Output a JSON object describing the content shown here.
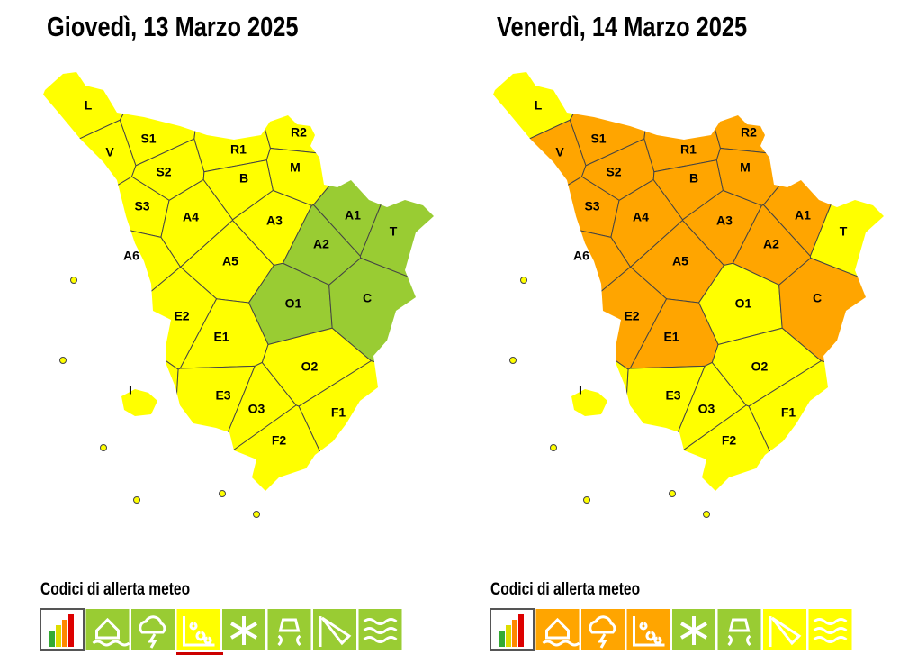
{
  "panels": [
    {
      "title": "Giovedì, 13 Marzo 2025",
      "zones": [
        {
          "label": "L",
          "color": "#ffff00"
        },
        {
          "label": "S1",
          "color": "#ffff00"
        },
        {
          "label": "V",
          "color": "#ffff00"
        },
        {
          "label": "S2",
          "color": "#ffff00"
        },
        {
          "label": "S3",
          "color": "#ffff00"
        },
        {
          "label": "A4",
          "color": "#ffff00"
        },
        {
          "label": "A6",
          "color": "#ffff00"
        },
        {
          "label": "A5",
          "color": "#ffff00"
        },
        {
          "label": "A3",
          "color": "#ffff00"
        },
        {
          "label": "R1",
          "color": "#ffff00"
        },
        {
          "label": "R2",
          "color": "#ffff00"
        },
        {
          "label": "M",
          "color": "#ffff00"
        },
        {
          "label": "B",
          "color": "#ffff00"
        },
        {
          "label": "A1",
          "color": "#99cc33"
        },
        {
          "label": "A2",
          "color": "#99cc33"
        },
        {
          "label": "T",
          "color": "#99cc33"
        },
        {
          "label": "O1",
          "color": "#99cc33"
        },
        {
          "label": "C",
          "color": "#99cc33"
        },
        {
          "label": "E2",
          "color": "#ffff00"
        },
        {
          "label": "E1",
          "color": "#ffff00"
        },
        {
          "label": "I",
          "color": "#ffff00"
        },
        {
          "label": "E3",
          "color": "#ffff00"
        },
        {
          "label": "O3",
          "color": "#ffff00"
        },
        {
          "label": "O2",
          "color": "#ffff00"
        },
        {
          "label": "F1",
          "color": "#ffff00"
        },
        {
          "label": "F2",
          "color": "#ffff00"
        }
      ],
      "legend": {
        "title": "Codici di allerta meteo",
        "icon_colors": [
          "#ffffff",
          "#99cc33",
          "#99cc33",
          "#ffff00",
          "#99cc33",
          "#99cc33",
          "#99cc33",
          "#99cc33"
        ]
      }
    },
    {
      "title": "Venerdì, 14 Marzo 2025",
      "zones": [
        {
          "label": "L",
          "color": "#ffff00"
        },
        {
          "label": "S1",
          "color": "#ffa500"
        },
        {
          "label": "V",
          "color": "#ffa500"
        },
        {
          "label": "S2",
          "color": "#ffa500"
        },
        {
          "label": "S3",
          "color": "#ffa500"
        },
        {
          "label": "A4",
          "color": "#ffa500"
        },
        {
          "label": "A6",
          "color": "#ffa500"
        },
        {
          "label": "A5",
          "color": "#ffa500"
        },
        {
          "label": "A3",
          "color": "#ffa500"
        },
        {
          "label": "R1",
          "color": "#ffa500"
        },
        {
          "label": "R2",
          "color": "#ffa500"
        },
        {
          "label": "M",
          "color": "#ffa500"
        },
        {
          "label": "B",
          "color": "#ffa500"
        },
        {
          "label": "A1",
          "color": "#ffa500"
        },
        {
          "label": "A2",
          "color": "#ffa500"
        },
        {
          "label": "T",
          "color": "#ffff00"
        },
        {
          "label": "O1",
          "color": "#ffff00"
        },
        {
          "label": "C",
          "color": "#ffa500"
        },
        {
          "label": "E2",
          "color": "#ffa500"
        },
        {
          "label": "E1",
          "color": "#ffa500"
        },
        {
          "label": "I",
          "color": "#ffff00"
        },
        {
          "label": "E3",
          "color": "#ffff00"
        },
        {
          "label": "O3",
          "color": "#ffff00"
        },
        {
          "label": "O2",
          "color": "#ffff00"
        },
        {
          "label": "F1",
          "color": "#ffff00"
        },
        {
          "label": "F2",
          "color": "#ffff00"
        }
      ],
      "legend": {
        "title": "Codici di allerta meteo",
        "icon_colors": [
          "#ffffff",
          "#ffa500",
          "#ffa500",
          "#ffa500",
          "#99cc33",
          "#99cc33",
          "#ffff00",
          "#ffff00"
        ]
      }
    }
  ]
}
